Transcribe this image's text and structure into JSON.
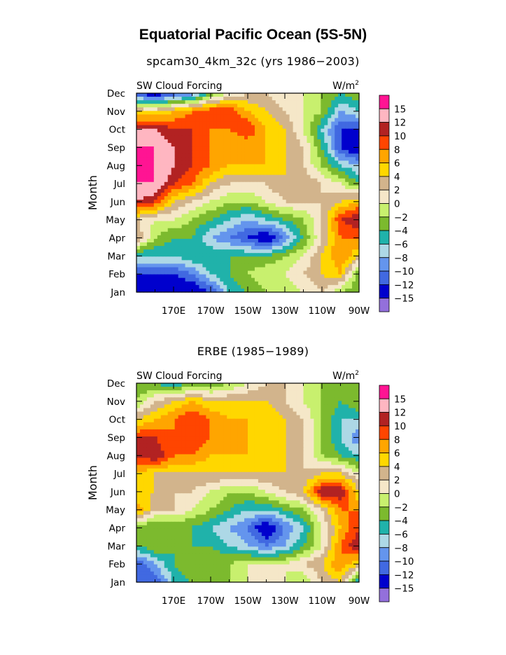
{
  "title": "Equatorial Pacific Ocean (5S-5N)",
  "colors": [
    "#9370db",
    "#0000cd",
    "#4169e1",
    "#6495ed",
    "#add8e6",
    "#20b2aa",
    "#7cba2e",
    "#c8f06e",
    "#f5e7c8",
    "#d2b48c",
    "#ffd700",
    "#ffa500",
    "#ff4500",
    "#b22222",
    "#ffb6c1",
    "#ff1493"
  ],
  "chart_data": [
    {
      "type": "heatmap",
      "title": "spcam30_4km_32c (yrs 1986−2003)",
      "subtitle_left": "SW Cloud Forcing",
      "subtitle_right_base": "W/m",
      "subtitle_right_sup": "2",
      "ylabel": "Month",
      "x_tick_labels": [
        "170E",
        "170W",
        "150W",
        "130W",
        "110W",
        "90W"
      ],
      "y_tick_labels": [
        "Jan",
        "Feb",
        "Mar",
        "Apr",
        "May",
        "Jun",
        "Jul",
        "Aug",
        "Sep",
        "Oct",
        "Nov",
        "Dec"
      ],
      "legend_labels": [
        "15",
        "12",
        "10",
        "8",
        "6",
        "4",
        "2",
        "0",
        "−2",
        "−4",
        "−6",
        "−8",
        "−10",
        "−12",
        "−15"
      ],
      "x": [
        "150E",
        "160E",
        "170E",
        "180",
        "170W",
        "160W",
        "150W",
        "140W",
        "130W",
        "120W",
        "110W",
        "100W",
        "90W"
      ],
      "y": [
        "Jan",
        "Feb",
        "Mar",
        "Apr",
        "May",
        "Jun",
        "Jul",
        "Aug",
        "Sep",
        "Oct",
        "Nov",
        "Dec"
      ],
      "z": [
        [
          -15,
          -15,
          -15,
          -15,
          -12,
          -6,
          -4,
          -2,
          -2,
          0,
          2,
          -2,
          -4
        ],
        [
          -12,
          -12,
          -12,
          -10,
          -6,
          -4,
          -2,
          0,
          0,
          2,
          4,
          6,
          -4
        ],
        [
          -6,
          -6,
          -6,
          -4,
          -4,
          -4,
          -4,
          -4,
          -2,
          0,
          4,
          8,
          4
        ],
        [
          4,
          -2,
          -4,
          -4,
          -8,
          -10,
          -12,
          -15,
          -10,
          -4,
          2,
          8,
          8
        ],
        [
          2,
          0,
          0,
          -2,
          -4,
          -6,
          -8,
          -6,
          -4,
          -2,
          2,
          10,
          12
        ],
        [
          12,
          10,
          4,
          2,
          0,
          -2,
          -2,
          0,
          2,
          2,
          2,
          4,
          6
        ],
        [
          15,
          15,
          10,
          8,
          4,
          2,
          2,
          2,
          4,
          4,
          2,
          0,
          -4
        ],
        [
          15,
          15,
          12,
          10,
          8,
          6,
          6,
          6,
          4,
          2,
          -2,
          -6,
          -8
        ],
        [
          15,
          15,
          12,
          10,
          8,
          6,
          6,
          6,
          4,
          2,
          -4,
          -12,
          -15
        ],
        [
          12,
          12,
          10,
          10,
          8,
          8,
          10,
          6,
          4,
          0,
          -6,
          -12,
          -12
        ],
        [
          4,
          4,
          6,
          8,
          10,
          10,
          6,
          4,
          2,
          0,
          -2,
          -8,
          -6
        ],
        [
          -12,
          -15,
          -12,
          -10,
          -4,
          0,
          2,
          2,
          0,
          0,
          -2,
          -4,
          -2
        ]
      ]
    },
    {
      "type": "heatmap",
      "title": "ERBE (1985−1989)",
      "subtitle_left": "SW Cloud Forcing",
      "subtitle_right_base": "W/m",
      "subtitle_right_sup": "2",
      "ylabel": "Month",
      "x_tick_labels": [
        "170E",
        "170W",
        "150W",
        "130W",
        "110W",
        "90W"
      ],
      "y_tick_labels": [
        "Jan",
        "Feb",
        "Mar",
        "Apr",
        "May",
        "Jun",
        "Jul",
        "Aug",
        "Sep",
        "Oct",
        "Nov",
        "Dec"
      ],
      "legend_labels": [
        "15",
        "12",
        "10",
        "8",
        "6",
        "4",
        "2",
        "0",
        "−2",
        "−4",
        "−6",
        "−8",
        "−10",
        "−12",
        "−15"
      ],
      "x": [
        "150E",
        "160E",
        "170E",
        "180",
        "170W",
        "160W",
        "150W",
        "140W",
        "130W",
        "120W",
        "110W",
        "100W",
        "90W"
      ],
      "y": [
        "Jan",
        "Feb",
        "Mar",
        "Apr",
        "May",
        "Jun",
        "Jul",
        "Aug",
        "Sep",
        "Oct",
        "Nov",
        "Dec"
      ],
      "z": [
        [
          -12,
          -12,
          -6,
          -4,
          -4,
          -2,
          0,
          2,
          0,
          -2,
          2,
          4,
          -6
        ],
        [
          -12,
          -8,
          -4,
          -2,
          -2,
          -2,
          0,
          0,
          0,
          2,
          4,
          8,
          4
        ],
        [
          -4,
          -2,
          -4,
          -4,
          -4,
          -6,
          -8,
          -10,
          -8,
          -4,
          0,
          8,
          12
        ],
        [
          -4,
          -4,
          -4,
          -4,
          -6,
          -8,
          -10,
          -15,
          -10,
          -6,
          0,
          6,
          10
        ],
        [
          8,
          2,
          2,
          0,
          -2,
          -4,
          -6,
          -6,
          -4,
          -2,
          2,
          8,
          8
        ],
        [
          4,
          4,
          2,
          2,
          0,
          -2,
          -2,
          0,
          2,
          4,
          12,
          12,
          4
        ],
        [
          6,
          4,
          4,
          4,
          4,
          4,
          4,
          4,
          4,
          2,
          4,
          4,
          0
        ],
        [
          10,
          12,
          8,
          8,
          6,
          6,
          6,
          6,
          4,
          2,
          -2,
          -4,
          -6
        ],
        [
          10,
          10,
          8,
          10,
          8,
          6,
          6,
          4,
          4,
          2,
          -2,
          -6,
          -10
        ],
        [
          4,
          6,
          8,
          10,
          8,
          6,
          6,
          6,
          4,
          2,
          -2,
          -6,
          -6
        ],
        [
          -2,
          2,
          4,
          6,
          4,
          4,
          4,
          4,
          2,
          0,
          -2,
          -4,
          -2
        ],
        [
          -4,
          -4,
          -6,
          -4,
          -4,
          -2,
          0,
          2,
          2,
          0,
          -2,
          -4,
          -2
        ]
      ]
    }
  ]
}
